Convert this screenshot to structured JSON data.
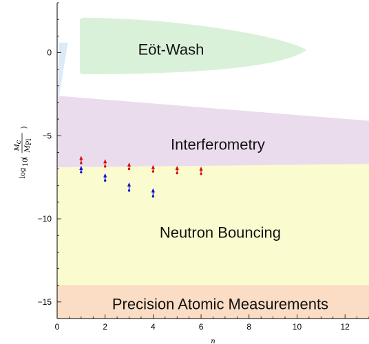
{
  "chart_data": {
    "type": "area",
    "xlabel": "n",
    "ylabel": "log10(Mc/Mpl)",
    "ylabel_parts": {
      "fn": "log",
      "sub": "10",
      "num": "M",
      "num_sub": "c",
      "den": "M",
      "den_sub": "Pl"
    },
    "xlim": [
      0,
      13
    ],
    "ylim": [
      -16,
      3
    ],
    "x_ticks": [
      0,
      2,
      4,
      6,
      8,
      10,
      12
    ],
    "y_ticks": [
      0,
      -5,
      -10,
      -15
    ],
    "x_tick_labels": [
      "0",
      "2",
      "4",
      "6",
      "8",
      "10",
      "12"
    ],
    "y_tick_labels": [
      "0",
      "−5",
      "−10",
      "−15"
    ],
    "grid": false,
    "regions": [
      {
        "name": "Precision Atomic Measurements",
        "color": "#fbdcc4",
        "y_bottom": -16,
        "y_top": -14
      },
      {
        "name": "Neutron Bouncing",
        "color": "#fbfbd0",
        "y_bottom": -14,
        "y_top_at_0": -6.9,
        "y_top_at_13": -6.7
      },
      {
        "name": "Interferometry",
        "color": "#eadcec",
        "y_top_at_0": -2.6,
        "y_top_at_13": -4.1
      },
      {
        "name": "Eöt-Wash",
        "color": "#d9f1d9",
        "x_min": 0.95,
        "x_max": 10.4,
        "y_min": -1.3,
        "y_max": 2.1
      },
      {
        "name": "small constraint",
        "color": "#dceaf8",
        "x_min": 0,
        "x_max": 0.45,
        "y_min": -3.3,
        "y_max": 0.6
      }
    ],
    "region_labels": [
      {
        "text": "Eöt-Wash",
        "x": 4.75,
        "y": 0.2
      },
      {
        "text": "Interferometry",
        "x": 6.7,
        "y": -5.5
      },
      {
        "text": "Neutron Bouncing",
        "x": 6.8,
        "y": -10.8
      },
      {
        "text": "Precision Atomic Measurements",
        "x": 6.8,
        "y": -15.1
      }
    ],
    "series": [
      {
        "color": "#d01010",
        "points": [
          {
            "x": 1,
            "y_min": -6.65,
            "y_max": -6.25
          },
          {
            "x": 2,
            "y_min": -6.85,
            "y_max": -6.45
          },
          {
            "x": 3,
            "y_min": -7.0,
            "y_max": -6.65
          },
          {
            "x": 4,
            "y_min": -7.15,
            "y_max": -6.8
          },
          {
            "x": 5,
            "y_min": -7.25,
            "y_max": -6.85
          },
          {
            "x": 6,
            "y_min": -7.3,
            "y_max": -6.9
          }
        ]
      },
      {
        "color": "#1010d0",
        "points": [
          {
            "x": 1,
            "y_min": -7.2,
            "y_max": -6.85
          },
          {
            "x": 2,
            "y_min": -7.7,
            "y_max": -7.3
          },
          {
            "x": 3,
            "y_min": -8.3,
            "y_max": -7.85
          },
          {
            "x": 4,
            "y_min": -8.65,
            "y_max": -8.2
          }
        ]
      }
    ]
  }
}
